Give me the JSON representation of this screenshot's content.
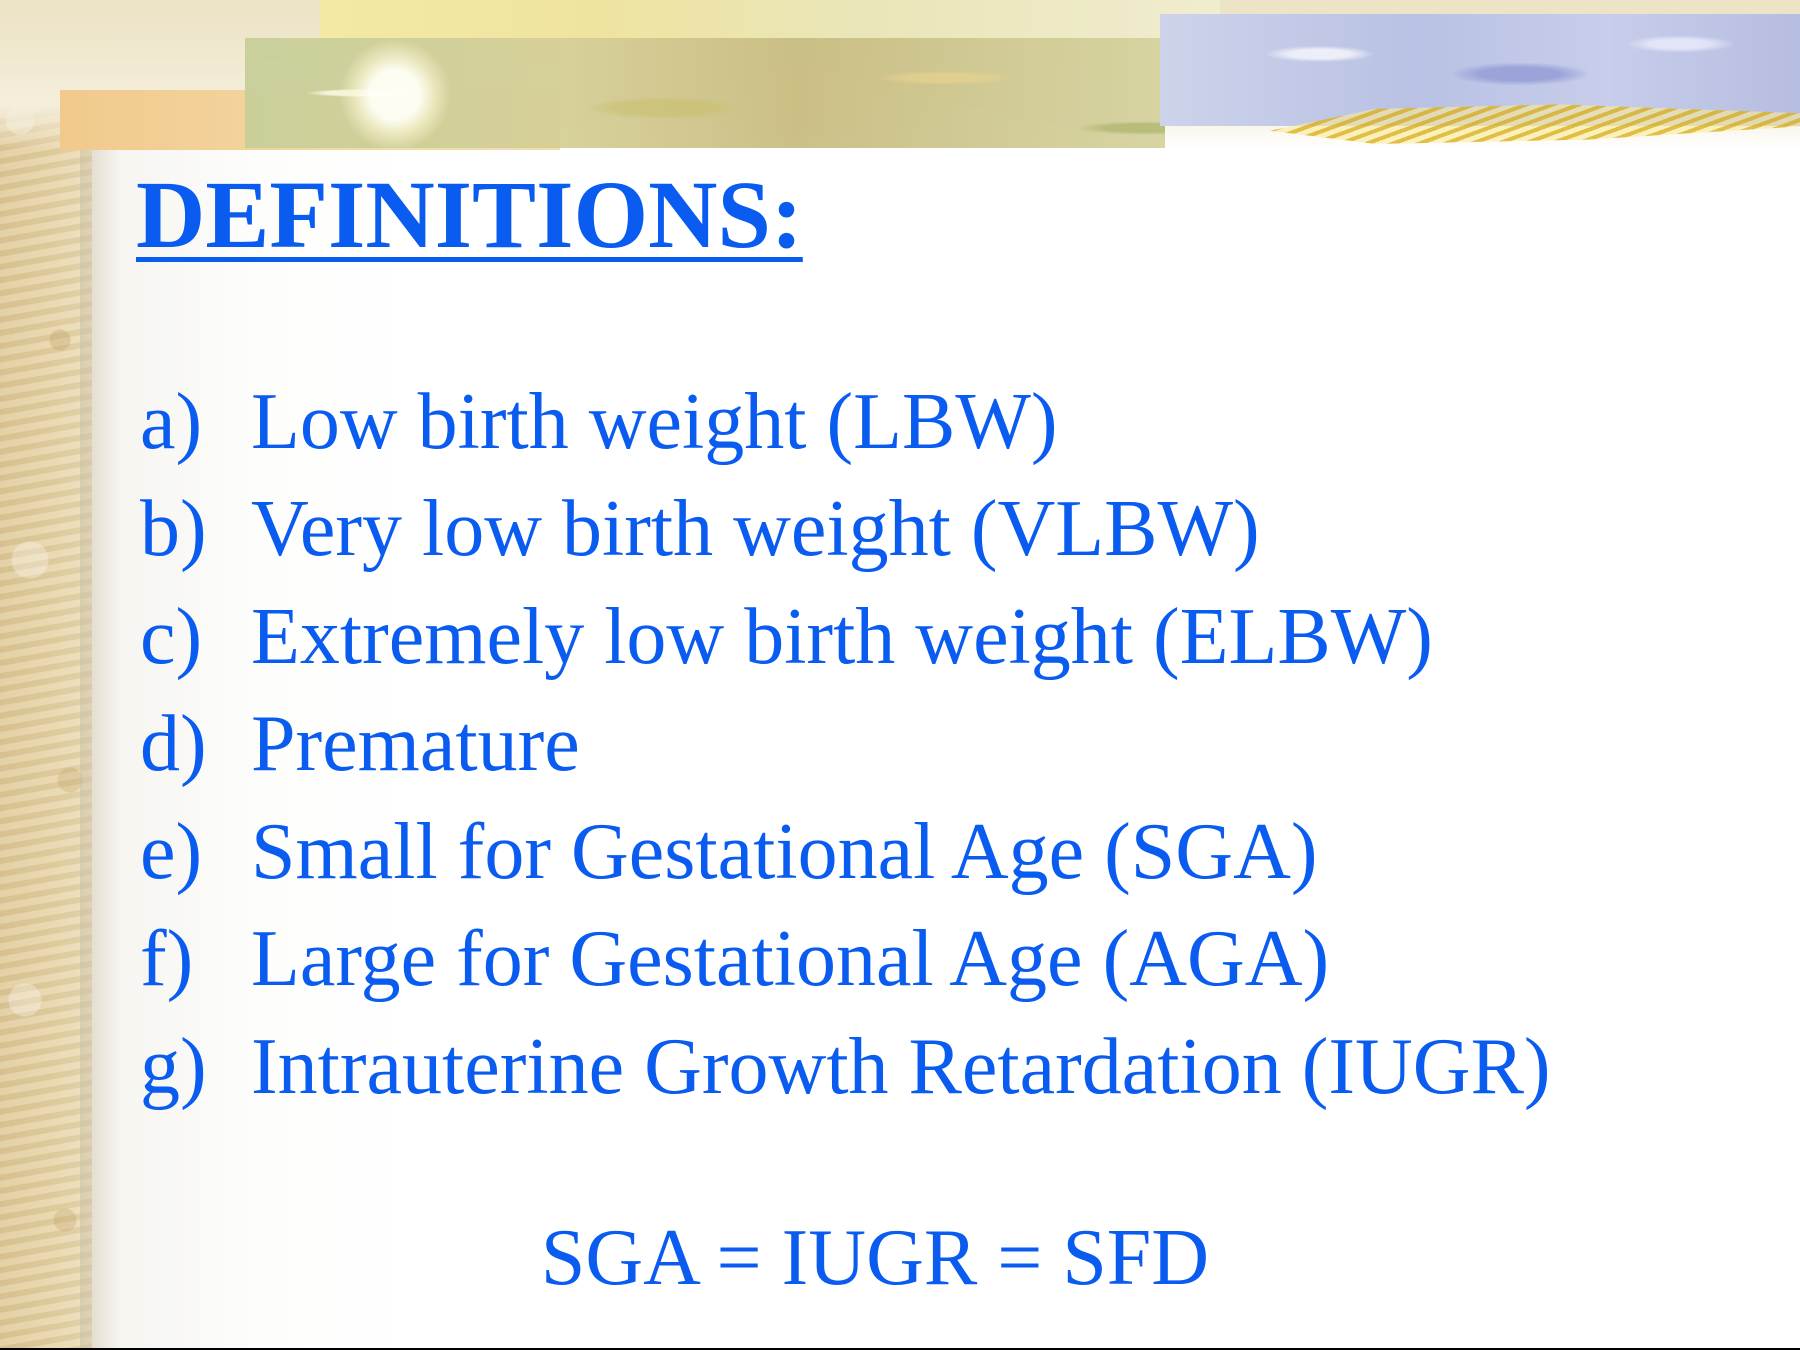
{
  "slide": {
    "title": "DEFINITIONS:",
    "definitions": [
      {
        "marker": "a)",
        "text": "Low birth weight (LBW)"
      },
      {
        "marker": "b)",
        "text": "Very low birth weight (VLBW)"
      },
      {
        "marker": "c)",
        "text": "Extremely low birth weight (ELBW)"
      },
      {
        "marker": "d)",
        "text": "Premature"
      },
      {
        "marker": "e)",
        "text": "Small for Gestational Age (SGA)"
      },
      {
        "marker": "f)",
        "text": "Large for Gestational Age (AGA)"
      },
      {
        "marker": "g)",
        "text": "Intrauterine Growth Retardation (IUGR)"
      }
    ],
    "equation": "SGA = IUGR = SFD"
  },
  "theme": {
    "text_color": "#0a5cf0",
    "background": "#ffffff",
    "decoration": "parchment-and-flower-collage"
  }
}
